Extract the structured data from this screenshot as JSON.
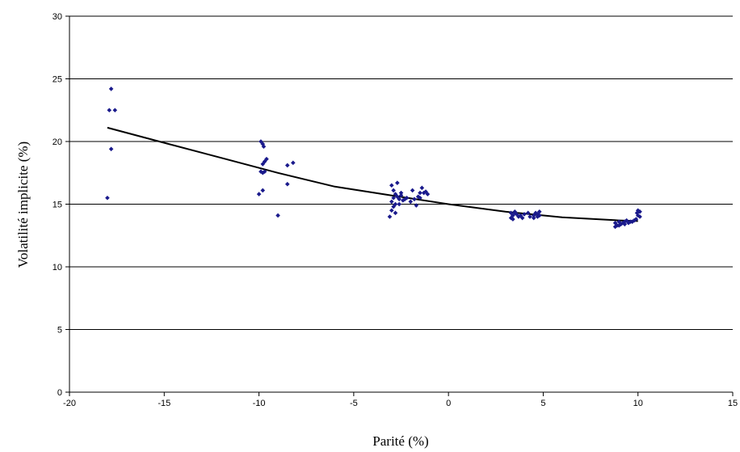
{
  "chart_data": {
    "type": "scatter",
    "xlabel": "Parité (%)",
    "ylabel": "Volatilité implicite (%)",
    "xlim": [
      -20,
      15
    ],
    "ylim": [
      0,
      30
    ],
    "xticks": [
      -20,
      -15,
      -10,
      -5,
      0,
      5,
      10,
      15
    ],
    "yticks": [
      0,
      5,
      10,
      15,
      20,
      25,
      30
    ],
    "grid": "horizontal",
    "marker_color": "#1a1a8c",
    "trend_color": "#000000",
    "series": [
      {
        "points": [
          [
            -17.9,
            22.5
          ],
          [
            -17.8,
            24.2
          ],
          [
            -17.6,
            22.5
          ],
          [
            -17.8,
            19.4
          ],
          [
            -18.0,
            15.5
          ],
          [
            -9.9,
            20.0
          ],
          [
            -9.8,
            19.8
          ],
          [
            -9.75,
            19.6
          ],
          [
            -9.8,
            18.2
          ],
          [
            -9.7,
            18.4
          ],
          [
            -9.6,
            18.6
          ],
          [
            -9.9,
            17.6
          ],
          [
            -9.8,
            17.5
          ],
          [
            -9.7,
            17.6
          ],
          [
            -9.8,
            16.1
          ],
          [
            -10.0,
            15.8
          ],
          [
            -8.5,
            18.1
          ],
          [
            -8.5,
            16.6
          ],
          [
            -8.2,
            18.3
          ],
          [
            -9.0,
            14.1
          ],
          [
            -2.7,
            16.7
          ],
          [
            -3.0,
            16.5
          ],
          [
            -2.9,
            16.1
          ],
          [
            -2.8,
            15.8
          ],
          [
            -2.9,
            15.5
          ],
          [
            -3.0,
            15.2
          ],
          [
            -2.8,
            15.0
          ],
          [
            -2.7,
            15.6
          ],
          [
            -2.6,
            15.4
          ],
          [
            -2.5,
            15.7
          ],
          [
            -2.4,
            15.3
          ],
          [
            -2.9,
            14.8
          ],
          [
            -3.0,
            14.5
          ],
          [
            -3.1,
            14.0
          ],
          [
            -2.8,
            14.3
          ],
          [
            -2.2,
            15.5
          ],
          [
            -2.0,
            15.2
          ],
          [
            -1.9,
            16.1
          ],
          [
            -1.8,
            15.4
          ],
          [
            -1.7,
            14.9
          ],
          [
            -1.6,
            15.6
          ],
          [
            -1.5,
            15.9
          ],
          [
            -1.4,
            16.3
          ],
          [
            -1.3,
            15.9
          ],
          [
            -1.2,
            16.0
          ],
          [
            -1.1,
            15.8
          ],
          [
            -1.5,
            15.5
          ],
          [
            -2.5,
            15.9
          ],
          [
            -2.3,
            15.4
          ],
          [
            -2.6,
            15.0
          ],
          [
            3.3,
            14.3
          ],
          [
            3.4,
            14.1
          ],
          [
            3.5,
            14.4
          ],
          [
            3.3,
            13.9
          ],
          [
            3.6,
            14.2
          ],
          [
            3.7,
            14.0
          ],
          [
            3.4,
            13.8
          ],
          [
            3.5,
            14.3
          ],
          [
            3.8,
            14.1
          ],
          [
            4.0,
            14.2
          ],
          [
            4.2,
            14.3
          ],
          [
            4.3,
            14.0
          ],
          [
            4.5,
            14.1
          ],
          [
            4.6,
            14.3
          ],
          [
            4.7,
            14.2
          ],
          [
            4.8,
            14.4
          ],
          [
            4.5,
            13.9
          ],
          [
            4.7,
            14.0
          ],
          [
            3.9,
            13.9
          ],
          [
            4.8,
            14.1
          ],
          [
            8.8,
            13.5
          ],
          [
            8.9,
            13.3
          ],
          [
            9.0,
            13.6
          ],
          [
            9.1,
            13.4
          ],
          [
            9.2,
            13.5
          ],
          [
            9.3,
            13.6
          ],
          [
            9.4,
            13.7
          ],
          [
            9.5,
            13.5
          ],
          [
            9.6,
            13.6
          ],
          [
            9.8,
            13.7
          ],
          [
            9.9,
            13.8
          ],
          [
            10.0,
            14.1
          ],
          [
            10.0,
            14.5
          ],
          [
            10.1,
            14.4
          ],
          [
            8.8,
            13.2
          ],
          [
            9.0,
            13.3
          ],
          [
            9.7,
            13.6
          ],
          [
            10.1,
            14.0
          ],
          [
            9.95,
            14.3
          ],
          [
            9.3,
            13.4
          ]
        ]
      }
    ],
    "trendline": {
      "type": "polynomial",
      "x_range": [
        -18,
        10
      ],
      "points": [
        [
          -18,
          21.1
        ],
        [
          -15,
          19.9
        ],
        [
          -12,
          18.7
        ],
        [
          -9,
          17.5
        ],
        [
          -6,
          16.4
        ],
        [
          -3,
          15.7
        ],
        [
          0,
          15.0
        ],
        [
          3,
          14.4
        ],
        [
          6,
          13.95
        ],
        [
          9,
          13.7
        ],
        [
          10,
          13.65
        ]
      ]
    }
  }
}
